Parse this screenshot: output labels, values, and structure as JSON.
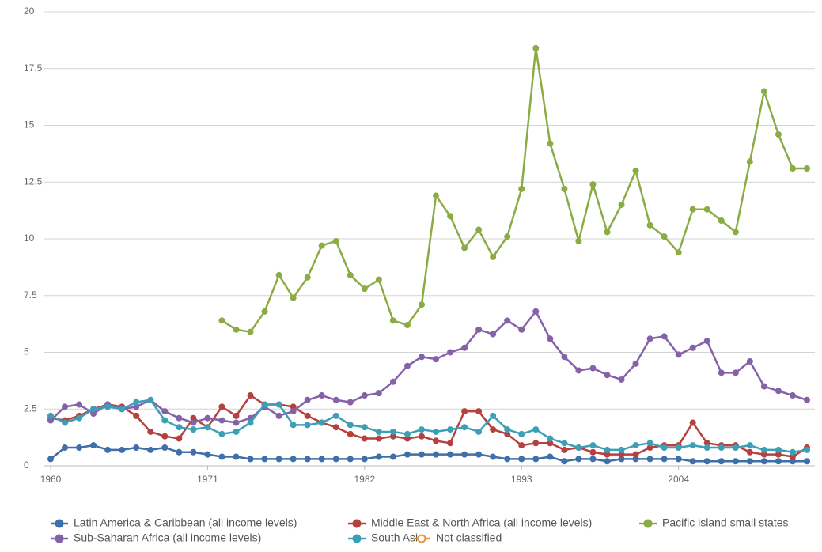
{
  "chart_data": {
    "type": "line",
    "x": [
      1960,
      1961,
      1962,
      1963,
      1964,
      1965,
      1966,
      1967,
      1968,
      1969,
      1970,
      1971,
      1972,
      1973,
      1974,
      1975,
      1976,
      1977,
      1978,
      1979,
      1980,
      1981,
      1982,
      1983,
      1984,
      1985,
      1986,
      1987,
      1988,
      1989,
      1990,
      1991,
      1992,
      1993,
      1994,
      1995,
      1996,
      1997,
      1998,
      1999,
      2000,
      2001,
      2002,
      2003,
      2004,
      2005,
      2006,
      2007,
      2008,
      2009,
      2010,
      2011,
      2012,
      2013
    ],
    "xlim": [
      1960,
      2013
    ],
    "xticks": [
      1960,
      1971,
      1982,
      1993,
      2004
    ],
    "ylim": [
      0,
      20
    ],
    "yticks": [
      0,
      2.5,
      5,
      7.5,
      10,
      12.5,
      15,
      17.5,
      20
    ],
    "grid": true,
    "series": [
      {
        "name": "Latin America & Caribbean (all income levels)",
        "color": "#3f6fa8",
        "values": [
          0.3,
          0.8,
          0.8,
          0.9,
          0.7,
          0.7,
          0.8,
          0.7,
          0.8,
          0.6,
          0.6,
          0.5,
          0.4,
          0.4,
          0.3,
          0.3,
          0.3,
          0.3,
          0.3,
          0.3,
          0.3,
          0.3,
          0.3,
          0.4,
          0.4,
          0.5,
          0.5,
          0.5,
          0.5,
          0.5,
          0.5,
          0.4,
          0.3,
          0.3,
          0.3,
          0.4,
          0.2,
          0.3,
          0.3,
          0.2,
          0.3,
          0.3,
          0.3,
          0.3,
          0.3,
          0.2,
          0.2,
          0.2,
          0.2,
          0.2,
          0.2,
          0.2,
          0.2,
          0.2
        ]
      },
      {
        "name": "Middle East & North Africa (all income levels)",
        "color": "#b5403e",
        "values": [
          2.1,
          2.0,
          2.2,
          2.5,
          2.7,
          2.6,
          2.2,
          1.5,
          1.3,
          1.2,
          2.1,
          1.7,
          2.6,
          2.2,
          3.1,
          2.7,
          2.7,
          2.6,
          2.2,
          1.9,
          1.7,
          1.4,
          1.2,
          1.2,
          1.3,
          1.2,
          1.3,
          1.1,
          1.0,
          2.4,
          2.4,
          1.6,
          1.4,
          0.9,
          1.0,
          1.0,
          0.7,
          0.8,
          0.6,
          0.5,
          0.5,
          0.5,
          0.8,
          0.9,
          0.9,
          1.9,
          1.0,
          0.9,
          0.9,
          0.6,
          0.5,
          0.5,
          0.4,
          0.8
        ]
      },
      {
        "name": "Pacific island small states",
        "color": "#8bab45",
        "values": [
          null,
          null,
          null,
          null,
          null,
          null,
          null,
          null,
          null,
          null,
          null,
          null,
          6.4,
          6.0,
          5.9,
          6.8,
          8.4,
          7.4,
          8.3,
          9.7,
          9.9,
          8.4,
          7.8,
          8.2,
          6.4,
          6.2,
          7.1,
          11.9,
          11.0,
          9.6,
          10.4,
          9.2,
          10.1,
          12.2,
          18.4,
          14.2,
          12.2,
          9.9,
          12.4,
          10.3,
          11.5,
          13.0,
          10.6,
          10.1,
          9.4,
          11.3,
          11.3,
          10.8,
          10.3,
          13.4,
          16.5,
          14.6,
          13.1,
          13.1
        ]
      },
      {
        "name": "Sub-Saharan Africa (all income levels)",
        "color": "#8561a8",
        "values": [
          2.0,
          2.6,
          2.7,
          2.3,
          2.7,
          2.5,
          2.6,
          2.9,
          2.4,
          2.1,
          1.9,
          2.1,
          2.0,
          1.9,
          2.1,
          2.6,
          2.2,
          2.4,
          2.9,
          3.1,
          2.9,
          2.8,
          3.1,
          3.2,
          3.7,
          4.4,
          4.8,
          4.7,
          5.0,
          5.2,
          6.0,
          5.8,
          6.4,
          6.0,
          6.8,
          5.6,
          4.8,
          4.2,
          4.3,
          4.0,
          3.8,
          4.5,
          5.6,
          5.7,
          4.9,
          5.2,
          5.5,
          4.1,
          4.1,
          4.6,
          3.5,
          3.3,
          3.1,
          2.9
        ]
      },
      {
        "name": "South Asia",
        "color": "#3d9fb5",
        "values": [
          2.2,
          1.9,
          2.1,
          2.5,
          2.6,
          2.5,
          2.8,
          2.9,
          2.0,
          1.7,
          1.6,
          1.7,
          1.4,
          1.5,
          1.9,
          2.7,
          2.7,
          1.8,
          1.8,
          1.9,
          2.2,
          1.8,
          1.7,
          1.5,
          1.5,
          1.4,
          1.6,
          1.5,
          1.6,
          1.7,
          1.5,
          2.2,
          1.6,
          1.4,
          1.6,
          1.2,
          1.0,
          0.8,
          0.9,
          0.7,
          0.7,
          0.9,
          1.0,
          0.8,
          0.8,
          0.9,
          0.8,
          0.8,
          0.8,
          0.9,
          0.7,
          0.7,
          0.6,
          0.7
        ]
      },
      {
        "name": "Not classified",
        "color": "#e8923a",
        "values": [
          null,
          null,
          null,
          null,
          null,
          null,
          null,
          null,
          null,
          null,
          null,
          null,
          null,
          null,
          null,
          null,
          null,
          null,
          null,
          null,
          null,
          null,
          null,
          null,
          null,
          null,
          null,
          null,
          null,
          null,
          null,
          null,
          null,
          null,
          null,
          null,
          null,
          null,
          null,
          null,
          null,
          null,
          null,
          null,
          null,
          null,
          null,
          null,
          null,
          null,
          null,
          null,
          null,
          null
        ]
      }
    ]
  }
}
